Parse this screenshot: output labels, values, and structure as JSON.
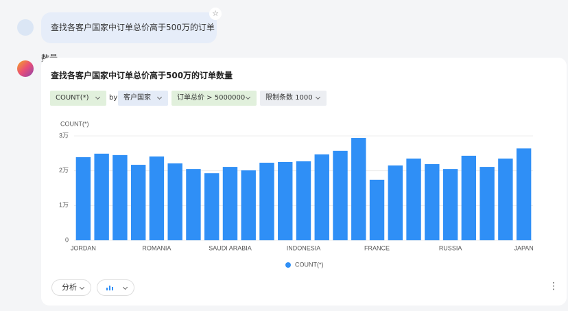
{
  "user_message": "查找各客户国家中订单总价高于500万的订单数量",
  "filters": {
    "measure": "COUNT(*)",
    "by": "by",
    "dimension": "客户国家",
    "condition": "订单总价 > 5000000",
    "limit": "限制条数 1000"
  },
  "actions": {
    "analyze": "分析"
  },
  "chart_data": {
    "type": "bar",
    "title": "查找各客户国家中订单总价高于500万的订单数量",
    "y_label": "COUNT(*)",
    "categories": [
      "JORDAN",
      null,
      null,
      null,
      "ROMANIA",
      null,
      null,
      null,
      "SAUDI ARABIA",
      null,
      null,
      null,
      "INDONESIA",
      null,
      null,
      null,
      "FRANCE",
      null,
      null,
      null,
      "RUSSIA",
      null,
      null,
      null,
      "JAPAN"
    ],
    "series": [
      {
        "name": "COUNT(*)",
        "color": "#2f8ff6",
        "values": [
          23900,
          24900,
          24500,
          21700,
          24100,
          22100,
          20500,
          19300,
          21100,
          20100,
          22300,
          22500,
          22700,
          24700,
          25700,
          29400,
          17400,
          21500,
          23500,
          21900,
          20500,
          24300,
          21100,
          23500,
          26400
        ]
      }
    ],
    "ylim": [
      0,
      30000
    ],
    "yticks": [
      0,
      {
        "value": 10000,
        "label": "1万"
      },
      {
        "value": 20000,
        "label": "2万"
      },
      {
        "value": 30000,
        "label": "3万"
      }
    ],
    "grid": true,
    "legend": "bottom"
  }
}
